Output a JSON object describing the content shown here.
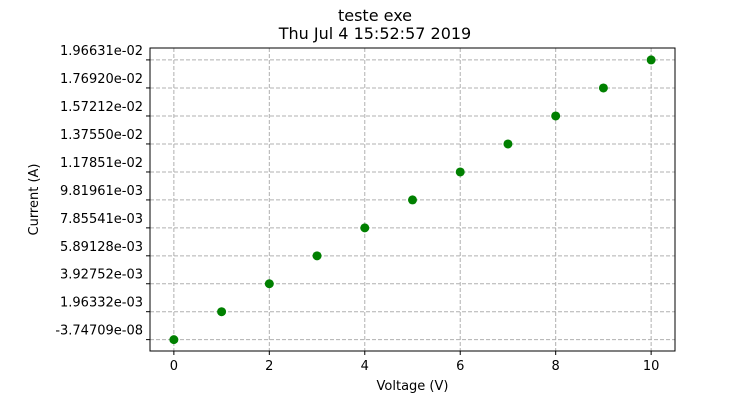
{
  "chart_data": {
    "type": "scatter",
    "title": [
      "teste exe",
      "Thu Jul  4 15:52:57 2019"
    ],
    "xlabel": "Voltage (V)",
    "ylabel": "Current (A)",
    "xlim": [
      -0.5,
      10.5
    ],
    "ylim": [
      -0.0008,
      0.0205
    ],
    "xticks": [
      0,
      2,
      4,
      6,
      8,
      10
    ],
    "ytick_labels": [
      "-3.74709e-08",
      "1.96332e-03",
      "3.92752e-03",
      "5.89128e-03",
      "7.85541e-03",
      "9.81961e-03",
      "1.17851e-02",
      "1.37550e-02",
      "1.57212e-02",
      "1.76920e-02",
      "1.96631e-02"
    ],
    "ytick_values": [
      -3.74709e-08,
      0.00196332,
      0.00392752,
      0.00589128,
      0.00785541,
      0.00981961,
      0.0117851,
      0.013755,
      0.0157212,
      0.017692,
      0.0196631
    ],
    "grid": true,
    "grid_style": "dashed",
    "marker_color": "#008000",
    "series": [
      {
        "x": [
          0,
          1,
          2,
          3,
          4,
          5,
          6,
          7,
          8,
          9,
          10
        ],
        "y": [
          -3.74709e-08,
          0.00196332,
          0.00392752,
          0.00589128,
          0.00785541,
          0.00981961,
          0.0117851,
          0.013755,
          0.0157212,
          0.017692,
          0.0196631
        ]
      }
    ]
  }
}
